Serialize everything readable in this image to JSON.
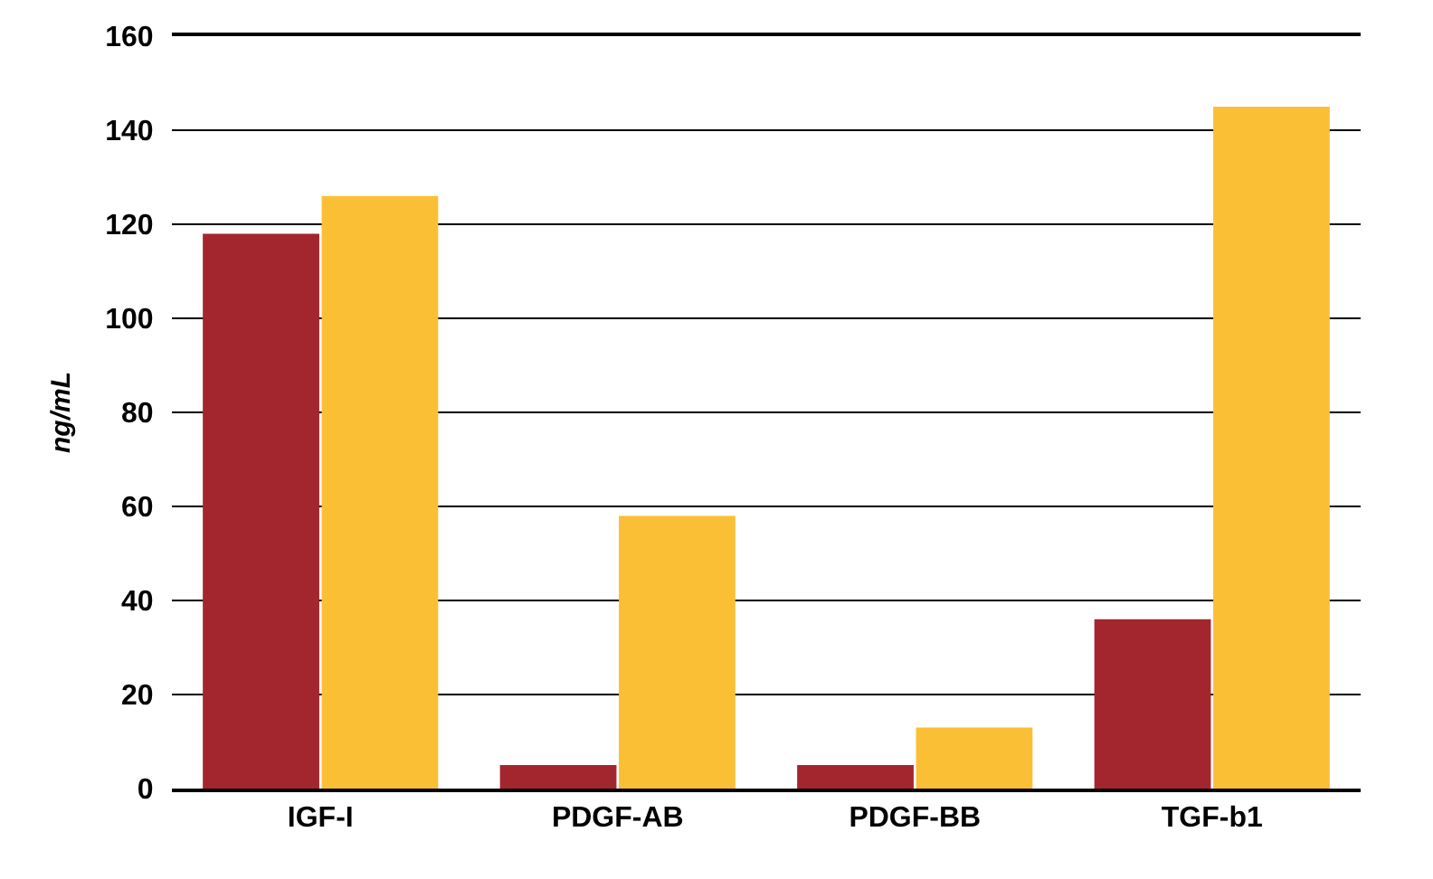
{
  "chart_data": {
    "type": "bar",
    "ylabel": "ng/mL",
    "categories": [
      "IGF-I",
      "PDGF-AB",
      "PDGF-BB",
      "TGF-b1"
    ],
    "series": [
      {
        "color": "#a3262f",
        "values": [
          118,
          5,
          5,
          36
        ]
      },
      {
        "color": "#fbbf36",
        "values": [
          126,
          58,
          13,
          145
        ]
      }
    ],
    "ylim": [
      0,
      160
    ],
    "yticks": [
      0,
      20,
      40,
      60,
      80,
      100,
      120,
      140,
      160
    ],
    "grid": "y"
  }
}
